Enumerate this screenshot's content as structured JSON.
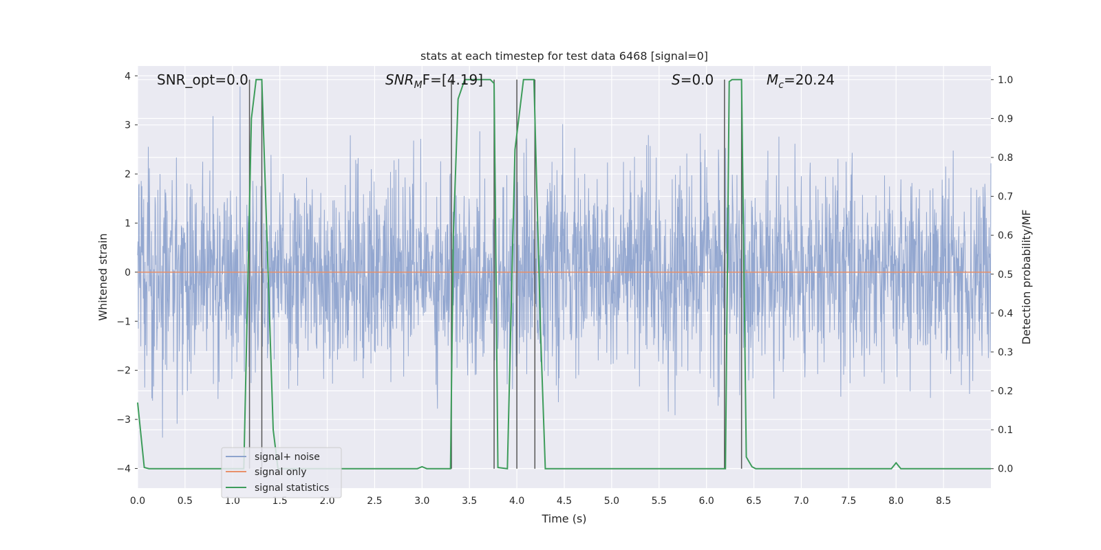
{
  "chart_data": {
    "type": "line",
    "title": "stats at each timestep for test data 6468 [signal=0]",
    "xlabel": "Time (s)",
    "ylabel_left": "Whitened strain",
    "ylabel_right": "Detection probability/MF",
    "xlim": [
      0.0,
      9.0
    ],
    "ylim_left": [
      -4.4,
      4.2
    ],
    "ylim_right": [
      -0.05,
      1.035
    ],
    "x_ticks": [
      "0.0",
      "0.5",
      "1.0",
      "1.5",
      "2.0",
      "2.5",
      "3.0",
      "3.5",
      "4.0",
      "4.5",
      "5.0",
      "5.5",
      "6.0",
      "6.5",
      "7.0",
      "7.5",
      "8.0",
      "8.5"
    ],
    "y_ticks_left": [
      "4",
      "3",
      "2",
      "1",
      "0",
      "−1",
      "−2",
      "−3",
      "−4"
    ],
    "y_ticks_right": [
      "1.0",
      "0.9",
      "0.8",
      "0.7",
      "0.6",
      "0.5",
      "0.4",
      "0.3",
      "0.2",
      "0.1",
      "0.0"
    ],
    "grid": true,
    "legend_position": "lower-left",
    "annotations": {
      "snr_opt": "SNR_opt=0.0",
      "snr_mf_base": "SNR",
      "snr_mf_sub": "M",
      "snr_mf_rest": "F=[4.19]",
      "s_italic": "S",
      "s_rest": "=0.0",
      "mc_base": "M",
      "mc_sub": "c",
      "mc_rest": "=20.24"
    },
    "series": [
      {
        "name": "signal+ noise",
        "color": "#8ea3cd",
        "axis": "left",
        "note_values": "dense whitened noise, approx. in range [-4, 4]",
        "amplitude_sd": 1.0
      },
      {
        "name": "signal only",
        "color": "#e8906a",
        "axis": "left",
        "x": [
          0.0,
          9.0
        ],
        "y": [
          0.0,
          0.0
        ]
      },
      {
        "name": "signal statistics",
        "color": "#3d9c5a",
        "axis": "right",
        "x": [
          0.0,
          0.07,
          0.12,
          1.12,
          1.2,
          1.25,
          1.31,
          1.43,
          1.48,
          2.95,
          3.0,
          3.05,
          3.3,
          3.33,
          3.38,
          3.45,
          3.72,
          3.76,
          3.8,
          3.9,
          3.98,
          4.07,
          4.18,
          4.25,
          4.3,
          4.35,
          6.2,
          6.24,
          6.27,
          6.37,
          6.42,
          6.48,
          6.52,
          7.95,
          8.0,
          8.05,
          9.0
        ],
        "y": [
          0.17,
          0.003,
          0.0,
          0.0,
          0.9,
          1.0,
          1.0,
          0.1,
          0.0,
          0.0,
          0.005,
          0.0,
          0.0,
          0.6,
          0.95,
          1.0,
          1.0,
          0.99,
          0.003,
          0.0,
          0.82,
          1.0,
          1.0,
          0.35,
          0.0,
          0.0,
          0.0,
          0.995,
          1.0,
          1.0,
          0.03,
          0.005,
          0.0,
          0.0,
          0.015,
          0.0,
          0.0
        ]
      }
    ],
    "vertical_markers": {
      "color": "#555555",
      "x": [
        1.18,
        1.31,
        3.31,
        3.76,
        4.0,
        4.19,
        6.19,
        6.37
      ]
    }
  }
}
